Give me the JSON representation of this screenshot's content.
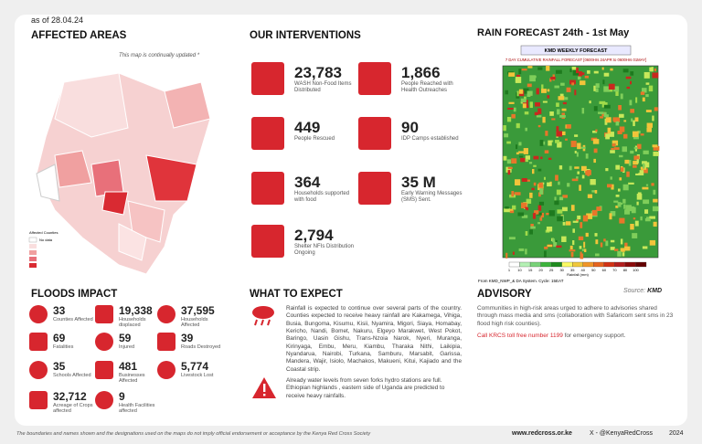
{
  "date": "as of 28.04.24",
  "affected_areas": {
    "title": "AFFECTED AREAS",
    "note": "This map is continually updated *",
    "legend_title": "Affected Counties",
    "legend_nodata": "No data"
  },
  "interventions": {
    "title": "OUR INTERVENTIONS",
    "items": [
      {
        "value": "23,783",
        "label": "WASH Non-Food Items Distributed"
      },
      {
        "value": "1,866",
        "label": "People Reached with Health Outreaches"
      },
      {
        "value": "449",
        "label": "People Rescued"
      },
      {
        "value": "90",
        "label": "IDP Camps established"
      },
      {
        "value": "364",
        "label": "Households supported with food"
      },
      {
        "value": "35 M",
        "label": "Early Warning Messages (SMS) Sent."
      },
      {
        "value": "2,794",
        "label": "Shelter NFIs Distribution Ongoing"
      }
    ]
  },
  "forecast": {
    "title": "RAIN FORECAST 24th - 1st May",
    "map_title": "KMD WEEKLY FORECAST",
    "map_subtitle": "7 DAY CUMULATIVE RAINFALL FORECAST [0600Hrs 24APR to 0600Hrs 01MAY]",
    "scale": [
      "1",
      "10",
      "15",
      "20",
      "25",
      "30",
      "35",
      "40",
      "50",
      "60",
      "70",
      "80",
      "100"
    ],
    "scale_label": "Rainfall (mm)",
    "from": "From KMD_NWP_& DA System. Cycle: 15EAT",
    "source": "Source:",
    "source_name": "KMD"
  },
  "floods_impact": {
    "title": "FLOODS IMPACT",
    "items": [
      {
        "value": "33",
        "label": "Counties Affected"
      },
      {
        "value": "19,338",
        "label": "Households displaced"
      },
      {
        "value": "37,595",
        "label": "Households Affected"
      },
      {
        "value": "69",
        "label": "Fatalities"
      },
      {
        "value": "59",
        "label": "Injured"
      },
      {
        "value": "39",
        "label": "Roads Destroyed"
      },
      {
        "value": "35",
        "label": "Schools Affected"
      },
      {
        "value": "481",
        "label": "Businesses Affected"
      },
      {
        "value": "5,774",
        "label": "Livestock Lost"
      },
      {
        "value": "32,712",
        "label": "Acreage of Crops affected"
      },
      {
        "value": "9",
        "label": "Health Facilities affected"
      }
    ]
  },
  "what_to_expect": {
    "title": "WHAT TO EXPECT",
    "paragraphs": [
      "Rainfall is expected to continue over several parts of the country. Counties expected to receive heavy rainfall are Kakamega, Vihiga, Busia, Bungoma, Kisumu, Kisii, Nyamira, Migori, Siaya, Homabay, Kericho, Nandi, Bomet, Nakuru, Elgeyo Marakwet, West Pokot, Baringo, Uasin Gishu, Trans-Nzoia Narok, Nyeri, Muranga, Kirinyaga, Embu, Meru, Kiambu, Tharaka Nithi, Laikipia, Nyandarua, Nairobi, Turkana, Samburu, Marsabit, Garissa, Mandera, Wajir, Isiolo, Machakos, Makueni, Kitui, Kajiado and the Coastal strip.",
      "Already water levels from seven forks hydro stations are full. Ethiopian highlands , eastern side of Uganda are predicted to receive heavy rainfalls."
    ]
  },
  "advisory": {
    "title": "ADVISORY",
    "text": "Communities in high-risk areas urged to adhere to advisories shared through mass media and sms (collaboration with Safaricom sent sms in 23 flood high risk counties).",
    "hotline": "Call KRCS toll free number 1199",
    "hotline_suffix": "for emergency support."
  },
  "footer": {
    "disclaimer": "The boundaries and names shown and the designations used on the maps do not imply official endorsement or acceptance by the Kenya Red Cross Society",
    "website": "www.redcross.or.ke",
    "social": "X - @KenyaRedCross",
    "year": "2024"
  }
}
